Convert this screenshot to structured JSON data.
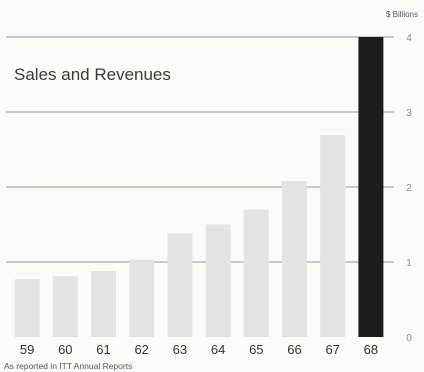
{
  "chart_data": {
    "type": "bar",
    "title": "Sales and Revenues",
    "unit_label": "$ Billions",
    "source": "As reported in ITT Annual Reports",
    "categories": [
      "59",
      "60",
      "61",
      "62",
      "63",
      "64",
      "65",
      "66",
      "67",
      "68"
    ],
    "values": [
      0.77,
      0.81,
      0.88,
      1.03,
      1.38,
      1.5,
      1.7,
      2.08,
      2.69,
      4.0
    ],
    "ylim": [
      0,
      4
    ],
    "yticks": [
      0,
      1,
      2,
      3,
      4
    ],
    "grid": true,
    "legend": "none",
    "colors": {
      "bar": "#e4e4e2",
      "highlight_bar": "#1c1c1c",
      "gridline": "#9a9a9a",
      "background": "#fbfbfa"
    },
    "highlight_index": 9
  }
}
